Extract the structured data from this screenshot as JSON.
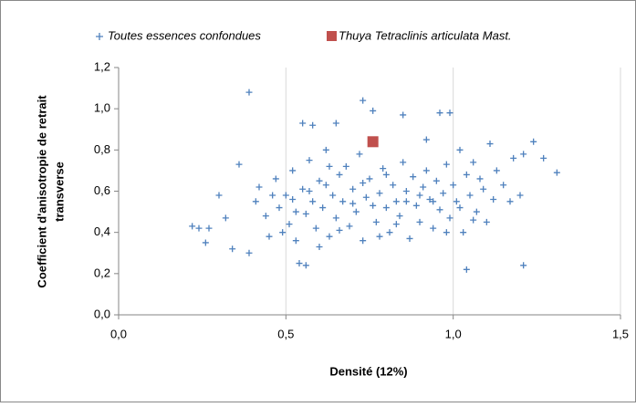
{
  "chart_data": {
    "type": "scatter",
    "xlabel": "Densité (12%)",
    "ylabel": [
      "Coefficient d'anisotropie de retrait",
      "transverse"
    ],
    "xlim": [
      0,
      1.5
    ],
    "ylim": [
      0,
      1.2
    ],
    "xticks": [
      {
        "value": 0,
        "label": "0,0"
      },
      {
        "value": 0.5,
        "label": "0,5"
      },
      {
        "value": 1,
        "label": "1,0"
      },
      {
        "value": 1.5,
        "label": "1,5"
      }
    ],
    "yticks": [
      {
        "value": 0,
        "label": "0,0"
      },
      {
        "value": 0.2,
        "label": "0,2"
      },
      {
        "value": 0.4,
        "label": "0,4"
      },
      {
        "value": 0.6,
        "label": "0,6"
      },
      {
        "value": 0.8,
        "label": "0,8"
      },
      {
        "value": 1,
        "label": "1,0"
      },
      {
        "value": 1.2,
        "label": "1,2"
      }
    ],
    "grid": true,
    "legend": "top",
    "series": [
      {
        "name": "Toutes essences confondues",
        "color": "#4f81bd",
        "marker": "plus",
        "x": [
          0.39,
          0.73,
          0.76,
          0.55,
          0.58,
          0.65,
          0.85,
          0.96,
          0.99,
          1.04,
          1.21,
          0.54,
          0.56,
          0.24,
          0.26,
          1.31,
          1.27,
          1.24,
          0.3,
          0.36,
          0.34,
          0.39,
          1.21,
          1.2,
          0.22,
          0.27,
          0.32,
          0.41,
          0.42,
          0.44,
          0.45,
          0.47,
          0.48,
          0.5,
          0.51,
          0.52,
          0.53,
          0.55,
          0.56,
          0.57,
          0.58,
          0.59,
          0.6,
          0.61,
          0.62,
          0.63,
          0.64,
          0.65,
          0.66,
          0.67,
          0.68,
          0.69,
          0.7,
          0.71,
          0.72,
          0.73,
          0.74,
          0.75,
          0.77,
          0.78,
          0.79,
          0.8,
          0.81,
          0.82,
          0.83,
          0.84,
          0.85,
          0.86,
          0.87,
          0.88,
          0.89,
          0.9,
          0.91,
          0.92,
          0.93,
          0.94,
          0.95,
          0.96,
          0.97,
          0.98,
          0.99,
          1.0,
          1.01,
          1.02,
          1.03,
          1.04,
          1.05,
          1.06,
          1.07,
          1.08,
          1.09,
          1.1,
          1.11,
          1.12,
          1.13,
          1.15,
          1.17,
          1.18,
          0.46,
          0.49,
          0.53,
          0.57,
          0.6,
          0.62,
          0.66,
          0.7,
          0.73,
          0.76,
          0.8,
          0.83,
          0.86,
          0.9,
          0.94,
          0.98,
          1.02,
          1.06,
          0.63,
          0.78,
          0.92,
          0.52
        ],
        "values": [
          1.08,
          1.04,
          0.99,
          0.93,
          0.92,
          0.93,
          0.97,
          0.98,
          0.98,
          0.22,
          0.24,
          0.25,
          0.24,
          0.42,
          0.35,
          0.69,
          0.76,
          0.84,
          0.58,
          0.73,
          0.32,
          0.3,
          0.78,
          0.58,
          0.43,
          0.42,
          0.47,
          0.55,
          0.62,
          0.48,
          0.38,
          0.66,
          0.52,
          0.58,
          0.44,
          0.7,
          0.36,
          0.61,
          0.49,
          0.75,
          0.55,
          0.42,
          0.65,
          0.52,
          0.8,
          0.38,
          0.58,
          0.47,
          0.68,
          0.55,
          0.72,
          0.43,
          0.61,
          0.5,
          0.78,
          0.36,
          0.57,
          0.66,
          0.45,
          0.59,
          0.71,
          0.52,
          0.4,
          0.63,
          0.55,
          0.48,
          0.74,
          0.6,
          0.37,
          0.67,
          0.53,
          0.45,
          0.62,
          0.7,
          0.56,
          0.42,
          0.65,
          0.51,
          0.59,
          0.73,
          0.47,
          0.63,
          0.55,
          0.8,
          0.4,
          0.68,
          0.58,
          0.74,
          0.5,
          0.66,
          0.61,
          0.45,
          0.83,
          0.56,
          0.7,
          0.63,
          0.55,
          0.76,
          0.58,
          0.4,
          0.5,
          0.6,
          0.33,
          0.63,
          0.41,
          0.54,
          0.64,
          0.53,
          0.68,
          0.44,
          0.55,
          0.58,
          0.55,
          0.4,
          0.52,
          0.46,
          0.72,
          0.38,
          0.85,
          0.56
        ]
      },
      {
        "name": "Thuya Tetraclinis articulata Mast.",
        "color": "#c0504d",
        "marker": "square",
        "x": [
          0.76
        ],
        "values": [
          0.84
        ]
      }
    ]
  }
}
